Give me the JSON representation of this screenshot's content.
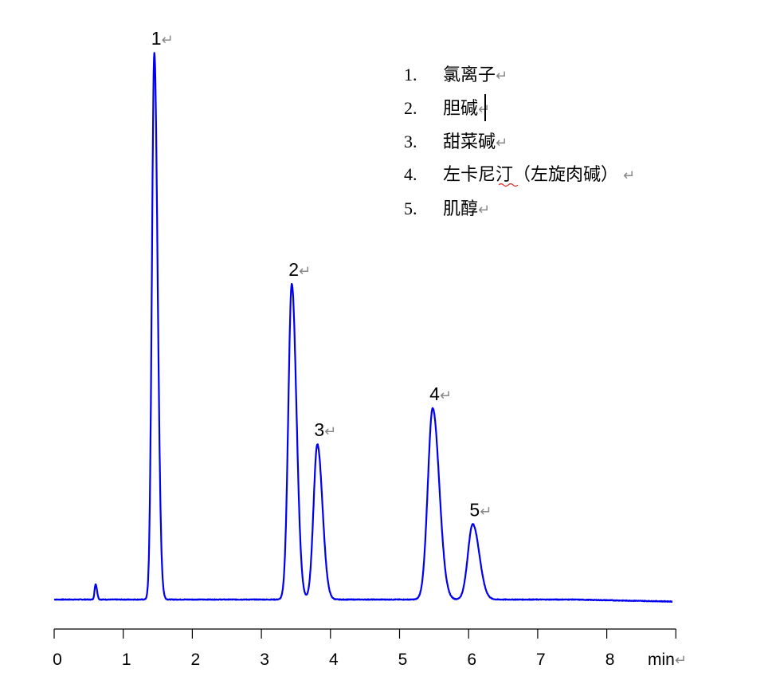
{
  "chart_data": {
    "type": "line",
    "title": "",
    "xlabel": "min",
    "ylabel": "",
    "xlim": [
      0,
      9
    ],
    "ylim": [
      0,
      100
    ],
    "x_ticks": [
      "0",
      "1",
      "2",
      "3",
      "4",
      "5",
      "6",
      "7",
      "8"
    ],
    "grid": false,
    "line_color": "#0000ee",
    "baseline": 0,
    "minor_peaks": [
      {
        "rt": 0.6,
        "height": 2.8,
        "width": 0.015
      }
    ],
    "peaks": [
      {
        "label": "1",
        "rt": 1.45,
        "height": 100,
        "width": 0.035
      },
      {
        "label": "2",
        "rt": 3.44,
        "height": 57.7,
        "width": 0.05
      },
      {
        "label": "3",
        "rt": 3.81,
        "height": 28.4,
        "width": 0.055
      },
      {
        "label": "4",
        "rt": 5.48,
        "height": 35.0,
        "width": 0.07
      },
      {
        "label": "5",
        "rt": 6.06,
        "height": 13.8,
        "width": 0.07
      }
    ]
  },
  "legend": [
    {
      "num": "1.",
      "name": "氯离子"
    },
    {
      "num": "2.",
      "name": "胆碱"
    },
    {
      "num": "3.",
      "name": "甜菜碱"
    },
    {
      "num": "4.",
      "name": "左卡尼汀（左旋肉碱）"
    },
    {
      "num": "5.",
      "name": "肌醇"
    }
  ],
  "return_mark": "↵"
}
